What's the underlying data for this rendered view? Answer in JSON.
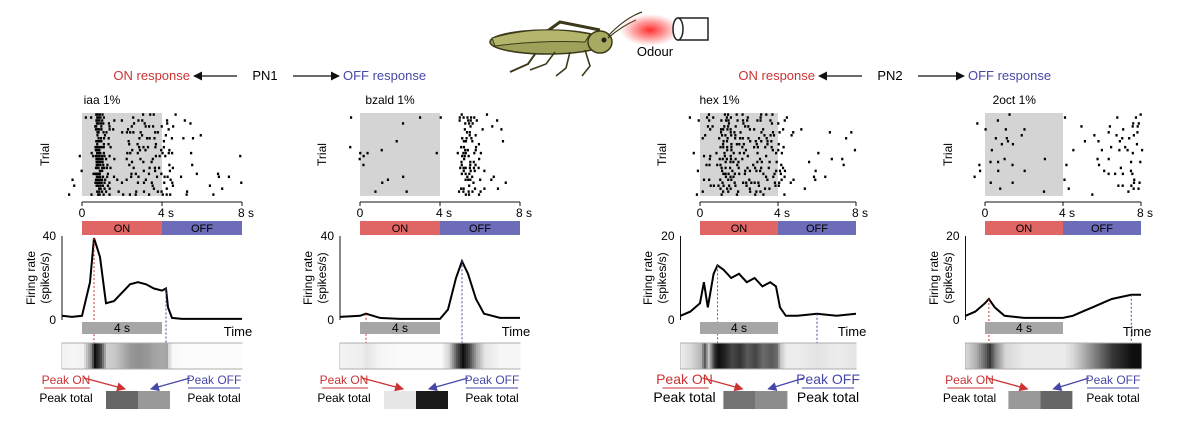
{
  "header": {
    "stimulus_label": "Odour",
    "insect_icon": "locust-icon",
    "nozzle_icon": "odour-nozzle-icon",
    "colors": {
      "on": "#cc3333",
      "off": "#4747a8",
      "glow": "#ff2222"
    }
  },
  "neurons": [
    {
      "name": "PN1",
      "on_response": "ON response",
      "off_response": "OFF response",
      "panels": [
        {
          "odour": "iaa 1%",
          "raster_ylabel": "Trial",
          "time_ticks": [
            "0",
            "4 s",
            "8 s"
          ],
          "on_label": "ON",
          "off_label": "OFF",
          "ylabel_line1": "Firing rate",
          "ylabel_line2": "(spikes/s)",
          "y_max_label": "40",
          "y_min_label": "0",
          "scale_bar_label": "4 s",
          "time_axis_label": "Time",
          "peak_on": "Peak ON",
          "peak_off": "Peak OFF",
          "peak_total": "Peak total",
          "y_max": 40,
          "rate_trace": [
            [
              -1,
              2
            ],
            [
              -0.5,
              1.5
            ],
            [
              0,
              2
            ],
            [
              0.4,
              18
            ],
            [
              0.6,
              39
            ],
            [
              0.9,
              30
            ],
            [
              1.2,
              8
            ],
            [
              1.6,
              9
            ],
            [
              2,
              13
            ],
            [
              2.4,
              17
            ],
            [
              2.8,
              18
            ],
            [
              3.2,
              17
            ],
            [
              3.6,
              15
            ],
            [
              4,
              14
            ],
            [
              4.2,
              15
            ],
            [
              4.3,
              6
            ],
            [
              4.5,
              1
            ],
            [
              5,
              0.5
            ],
            [
              8,
              0.5
            ]
          ],
          "on_index": 0.6,
          "off_index": 0.4
        },
        {
          "odour": "bzald 1%",
          "raster_ylabel": "Trial",
          "time_ticks": [
            "0",
            "4 s",
            "8 s"
          ],
          "on_label": "ON",
          "off_label": "OFF",
          "ylabel_line1": "Firing rate",
          "ylabel_line2": "(spikes/s)",
          "y_max_label": "40",
          "y_min_label": "0",
          "scale_bar_label": "4 s",
          "time_axis_label": "Time",
          "peak_on": "Peak ON",
          "peak_off": "Peak OFF",
          "peak_total": "Peak total",
          "y_max": 40,
          "rate_trace": [
            [
              -1,
              1.5
            ],
            [
              0,
              2
            ],
            [
              0.3,
              3
            ],
            [
              1,
              1
            ],
            [
              2,
              0.5
            ],
            [
              3,
              0.5
            ],
            [
              4,
              0.5
            ],
            [
              4.4,
              5
            ],
            [
              4.8,
              20
            ],
            [
              5.1,
              28
            ],
            [
              5.4,
              22
            ],
            [
              5.8,
              10
            ],
            [
              6.2,
              3
            ],
            [
              7,
              1
            ],
            [
              8,
              1
            ]
          ],
          "on_index": 0.1,
          "off_index": 0.9
        }
      ]
    },
    {
      "name": "PN2",
      "on_response": "ON response",
      "off_response": "OFF response",
      "panels": [
        {
          "odour": "hex 1%",
          "raster_ylabel": "Trial",
          "time_ticks": [
            "0",
            "4 s",
            "8 s"
          ],
          "on_label": "ON",
          "off_label": "OFF",
          "ylabel_line1": "Firing rate",
          "ylabel_line2": "(spikes/s)",
          "y_max_label": "20",
          "y_min_label": "0",
          "scale_bar_label": "4 s",
          "time_axis_label": "Time",
          "peak_on": "Peak ON",
          "peak_off": "Peak OFF",
          "peak_total": "Peak total",
          "y_max": 20,
          "rate_trace": [
            [
              -1,
              1
            ],
            [
              -0.5,
              2
            ],
            [
              0,
              4
            ],
            [
              0.2,
              9
            ],
            [
              0.4,
              3
            ],
            [
              0.7,
              11
            ],
            [
              0.9,
              13
            ],
            [
              1.2,
              12
            ],
            [
              1.6,
              10
            ],
            [
              2,
              11
            ],
            [
              2.4,
              9
            ],
            [
              2.8,
              10
            ],
            [
              3.2,
              8
            ],
            [
              3.6,
              9
            ],
            [
              3.9,
              8
            ],
            [
              4.1,
              3
            ],
            [
              4.4,
              1
            ],
            [
              5,
              1
            ],
            [
              6,
              1.5
            ],
            [
              7,
              1
            ],
            [
              8,
              1.5
            ]
          ],
          "on_index": 0.55,
          "off_index": 0.45
        },
        {
          "odour": "2oct 1%",
          "raster_ylabel": "Trial",
          "time_ticks": [
            "0",
            "4 s",
            "8 s"
          ],
          "on_label": "ON",
          "off_label": "OFF",
          "ylabel_line1": "Firing rate",
          "ylabel_line2": "(spikes/s)",
          "y_max_label": "20",
          "y_min_label": "0",
          "scale_bar_label": "4 s",
          "time_axis_label": "Time",
          "peak_on": "Peak ON",
          "peak_off": "Peak OFF",
          "peak_total": "Peak total",
          "y_max": 20,
          "rate_trace": [
            [
              -1,
              1
            ],
            [
              -0.5,
              2
            ],
            [
              0,
              4
            ],
            [
              0.2,
              5
            ],
            [
              0.5,
              3
            ],
            [
              1,
              1
            ],
            [
              2,
              0.5
            ],
            [
              3,
              0.5
            ],
            [
              4,
              0.5
            ],
            [
              4.5,
              1
            ],
            [
              5,
              2
            ],
            [
              5.5,
              3
            ],
            [
              6,
              4
            ],
            [
              6.5,
              5
            ],
            [
              7,
              5.5
            ],
            [
              7.5,
              6
            ],
            [
              8,
              6
            ]
          ],
          "on_index": 0.4,
          "off_index": 0.6
        }
      ]
    }
  ]
}
